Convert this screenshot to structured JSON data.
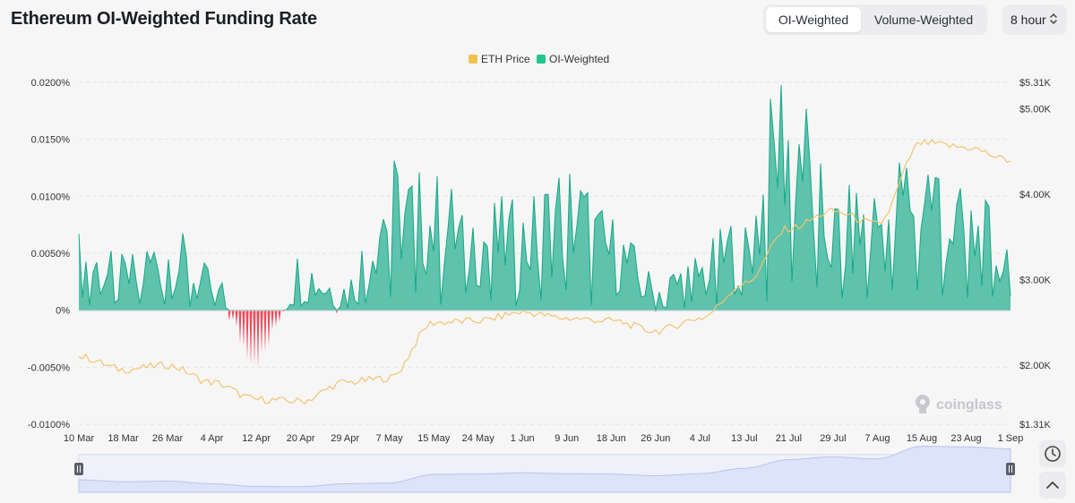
{
  "title": "Ethereum OI-Weighted Funding Rate",
  "toggle": {
    "options": [
      "OI-Weighted",
      "Volume-Weighted"
    ],
    "active": "OI-Weighted"
  },
  "interval": {
    "selected": "8 hour"
  },
  "watermark": "coinglass",
  "colors": {
    "funding_positive": "#5ec2ad",
    "funding_positive_line": "#15a884",
    "funding_negative": "#f04a5c",
    "price_line": "#f2c46d",
    "legend_price": "#efc14f",
    "legend_oi": "#22c58f",
    "navigator_fill": "#dde3f8"
  },
  "icons": {
    "interval": "chevron-up-down-icon",
    "screenshot": "camera-timer-icon",
    "scroll_top": "chevron-up-icon",
    "navigator_handle": "grip-icon",
    "watermark": "coinglass-logo-icon"
  },
  "chart_data": {
    "type": "area",
    "legend": [
      "ETH Price",
      "OI-Weighted"
    ],
    "legend_position": "top-center",
    "x_tick_labels": [
      "10 Mar",
      "18 Mar",
      "26 Mar",
      "4 Apr",
      "12 Apr",
      "20 Apr",
      "29 Apr",
      "7 May",
      "15 May",
      "24 May",
      "1 Jun",
      "9 Jun",
      "18 Jun",
      "26 Jun",
      "4 Jul",
      "13 Jul",
      "21 Jul",
      "29 Jul",
      "7 Aug",
      "15 Aug",
      "23 Aug",
      "1 Sep"
    ],
    "y_left_ticks": [
      "0.0200%",
      "0.0150%",
      "0.0100%",
      "0.0050%",
      "0%",
      "-0.0050%",
      "-0.0100%"
    ],
    "y_right_ticks": [
      "$5.31K",
      "$5.00K",
      "$4.00K",
      "$3.00K",
      "$2.00K",
      "$1.31K"
    ],
    "y_left_range": [
      -0.01,
      0.02
    ],
    "y_right_range": [
      1310,
      5310
    ],
    "grid": "horizontal dashed",
    "series": [
      {
        "name": "OI-Weighted",
        "unit": "%",
        "axis": "left",
        "x": [
          "10 Mar",
          "18 Mar",
          "26 Mar",
          "4 Apr",
          "12 Apr",
          "20 Apr",
          "29 Apr",
          "7 May",
          "15 May",
          "24 May",
          "1 Jun",
          "9 Jun",
          "18 Jun",
          "26 Jun",
          "4 Jul",
          "13 Jul",
          "21 Jul",
          "29 Jul",
          "7 Aug",
          "15 Aug",
          "23 Aug",
          "1 Sep"
        ],
        "values": [
          0.004,
          0.0025,
          0.0045,
          0.0018,
          -0.0045,
          0.003,
          0.0015,
          0.0085,
          0.0075,
          0.006,
          0.0058,
          0.0085,
          0.005,
          0.0015,
          0.003,
          0.0055,
          0.0155,
          0.0062,
          0.0075,
          0.0105,
          0.0065,
          0.0045
        ]
      },
      {
        "name": "ETH Price",
        "unit": "USD",
        "axis": "right",
        "x": [
          "10 Mar",
          "18 Mar",
          "26 Mar",
          "4 Apr",
          "12 Apr",
          "20 Apr",
          "29 Apr",
          "7 May",
          "15 May",
          "24 May",
          "1 Jun",
          "9 Jun",
          "18 Jun",
          "26 Jun",
          "4 Jul",
          "13 Jul",
          "21 Jul",
          "29 Jul",
          "7 Aug",
          "15 Aug",
          "23 Aug",
          "1 Sep"
        ],
        "values": [
          2100,
          1950,
          2000,
          1800,
          1600,
          1580,
          1800,
          1850,
          2500,
          2520,
          2620,
          2550,
          2520,
          2400,
          2550,
          2950,
          3600,
          3800,
          3650,
          4600,
          4550,
          4400
        ]
      }
    ]
  }
}
